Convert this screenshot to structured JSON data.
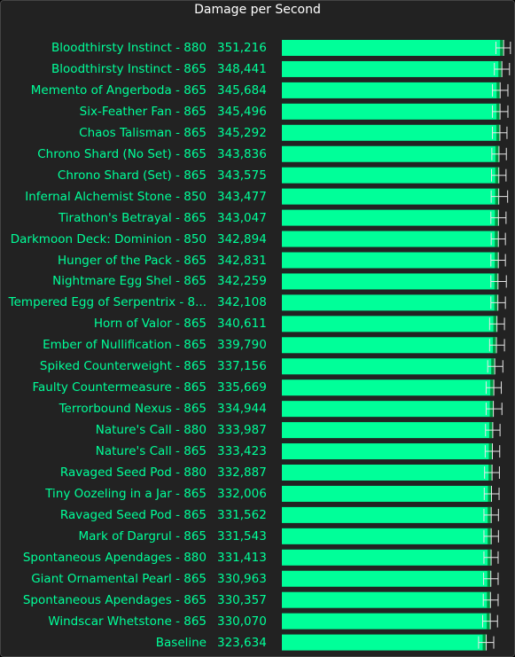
{
  "chart_data": {
    "type": "bar",
    "title": "Damage per Second",
    "xlabel": "",
    "ylabel": "",
    "categories": [
      "Bloodthirsty Instinct - 880",
      "Bloodthirsty Instinct - 865",
      "Memento of Angerboda - 865",
      "Six-Feather Fan - 865",
      "Chaos Talisman - 865",
      "Chrono Shard (No Set) - 865",
      "Chrono Shard (Set) - 865",
      "Infernal Alchemist Stone - 850",
      "Tirathon's Betrayal - 865",
      "Darkmoon Deck: Dominion - 850",
      "Hunger of the Pack - 865",
      "Nightmare Egg Shel - 865",
      "Tempered Egg of Serpentrix - 8...",
      "Horn of Valor - 865",
      "Ember of Nullification - 865",
      "Spiked Counterweight - 865",
      "Faulty Countermeasure - 865",
      "Terrorbound Nexus - 865",
      "Nature's Call - 880",
      "Nature's Call - 865",
      "Ravaged Seed Pod - 880",
      "Tiny Oozeling in a Jar - 865",
      "Ravaged Seed Pod - 865",
      "Mark of Dargrul - 865",
      "Spontaneous Apendages - 880",
      "Giant Ornamental Pearl - 865",
      "Spontaneous Apendages - 865",
      "Windscar Whetstone - 865",
      "Baseline"
    ],
    "values": [
      351216,
      348441,
      345684,
      345496,
      345292,
      343836,
      343575,
      343477,
      343047,
      342894,
      342831,
      342259,
      342108,
      340611,
      339790,
      337156,
      335669,
      334944,
      333987,
      333423,
      332887,
      332006,
      331562,
      331543,
      331413,
      330963,
      330357,
      330070,
      323634
    ],
    "value_labels": [
      "351,216",
      "348,441",
      "345,684",
      "345,496",
      "345,292",
      "343,836",
      "343,575",
      "343,477",
      "343,047",
      "342,894",
      "342,831",
      "342,259",
      "342,108",
      "340,611",
      "339,790",
      "337,156",
      "335,669",
      "334,944",
      "333,987",
      "333,423",
      "332,887",
      "332,006",
      "331,562",
      "331,543",
      "331,413",
      "330,963",
      "330,357",
      "330,070",
      "323,634"
    ],
    "error_low": [
      339000,
      336500,
      333500,
      333500,
      333500,
      332500,
      332000,
      331500,
      331000,
      331500,
      331000,
      331000,
      331000,
      329000,
      329000,
      326000,
      323500,
      323500,
      322500,
      322000,
      321000,
      320500,
      320000,
      320000,
      320000,
      319500,
      319000,
      318000,
      311500
    ],
    "error_high": [
      362000,
      360500,
      358000,
      358000,
      356500,
      355500,
      355000,
      357500,
      355000,
      354000,
      354000,
      355500,
      354000,
      352500,
      352500,
      350000,
      347500,
      348500,
      345500,
      345000,
      344500,
      344000,
      343000,
      343000,
      342500,
      342500,
      342500,
      341500,
      335500
    ],
    "xlim": [
      0,
      365000
    ],
    "colors": {
      "bar": "#00ff99",
      "bar_edge": "#009944",
      "error": "#e8e8e8",
      "text": "#00ff99",
      "title": "#ffffff",
      "background": "#222222"
    },
    "grid": false,
    "legend": "none"
  }
}
